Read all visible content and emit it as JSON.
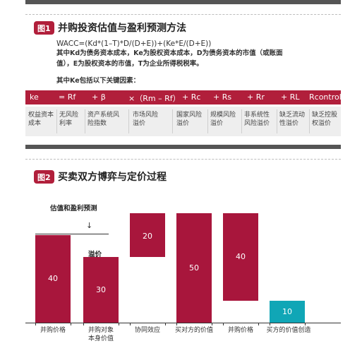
{
  "fig1": {
    "badge": "图1",
    "title": "并购投资估值与盈利预测方法",
    "formula": "WACC=(Kd*(1–T)*D/(D+E))+(Ke*E/(D+E))",
    "desc_line1": "其中Kd为债务资本成本，Ke为股权资本成本，D为债务资本的市值（或账面",
    "desc_line2": "值），E为股权资本的市值，T为企业所得税税率。",
    "key_factors": "其中Ke包括以下关键因素：",
    "headers": [
      "ke",
      "= Rf",
      "+ β",
      "×（Rm – Rf）",
      "+ Rc",
      "+ Rs",
      "+ Rr",
      "+ RL",
      "Rcontrol"
    ],
    "cells": [
      [
        "权益资本",
        "成本"
      ],
      [
        "无风险",
        "利率"
      ],
      [
        "资产系统风",
        "险指数"
      ],
      [
        "市场风险",
        "溢价"
      ],
      [
        "国家风险",
        "溢价"
      ],
      [
        "规模风险",
        "溢价"
      ],
      [
        "非系统性",
        "风险溢价"
      ],
      [
        "缺乏流动",
        "性溢价"
      ],
      [
        "缺乏控股",
        "权溢价"
      ]
    ]
  },
  "fig2": {
    "badge": "图2",
    "title": "买卖双方博弈与定价过程",
    "note_valuation": "估值和盈利预测",
    "note_premium": "溢价",
    "arrow": "↓",
    "colors": {
      "red": "#a8163c",
      "teal": "#10a6b6"
    }
  },
  "chart_data": {
    "type": "bar",
    "categories": [
      "并购价格",
      "并购对象本身价值",
      "协同效应",
      "买对方的价值",
      "并购价格",
      "买方的价值创造"
    ],
    "values": [
      40,
      30,
      20,
      50,
      40,
      10
    ]
  }
}
